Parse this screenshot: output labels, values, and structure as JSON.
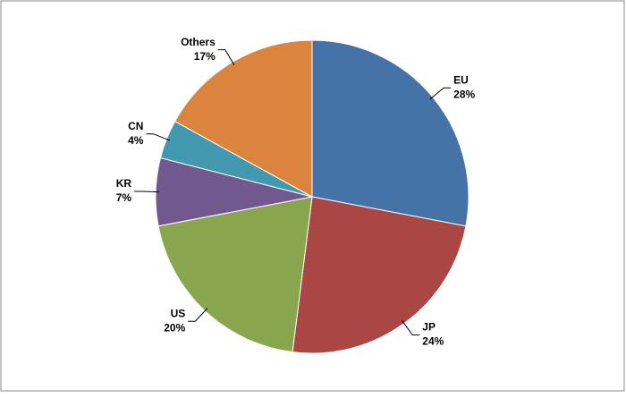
{
  "chart_data": {
    "type": "pie",
    "categories": [
      "EU",
      "JP",
      "US",
      "KR",
      "CN",
      "Others"
    ],
    "values": [
      28,
      24,
      20,
      7,
      4,
      17
    ],
    "value_labels": [
      "28%",
      "24%",
      "20%",
      "7%",
      "4%",
      "17%"
    ],
    "colors": [
      "#4572a7",
      "#aa4643",
      "#89a54e",
      "#71588f",
      "#4198af",
      "#db843d"
    ]
  }
}
